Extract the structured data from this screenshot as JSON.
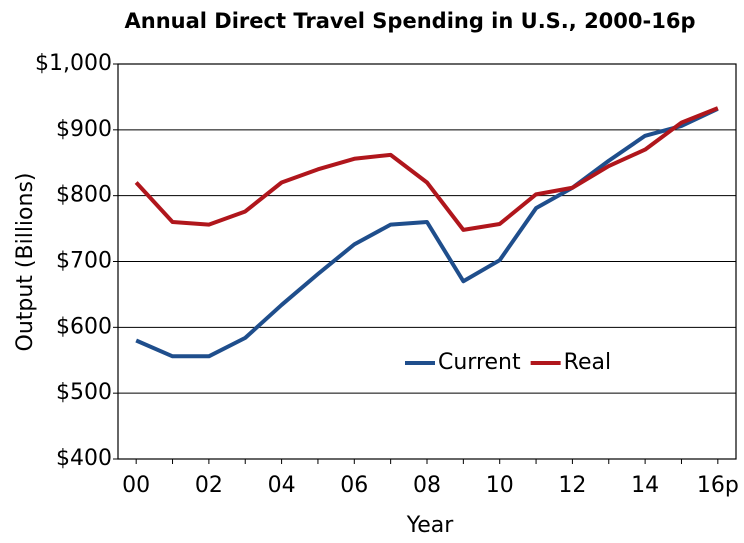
{
  "chart_data": {
    "type": "line",
    "title": "Annual Direct Travel Spending in U.S., 2000-16p",
    "x_label": "Year",
    "y_label": "Output (Billions)",
    "categories": [
      "00",
      null,
      "02",
      null,
      "04",
      null,
      "06",
      null,
      "08",
      null,
      "10",
      null,
      "12",
      null,
      "14",
      null,
      "16p"
    ],
    "series": [
      {
        "name": "Current",
        "color": "#1f4e8c",
        "values": [
          580,
          556,
          556,
          584,
          634,
          681,
          726,
          756,
          760,
          670,
          702,
          781,
          812,
          853,
          891,
          906,
          932
        ]
      },
      {
        "name": "Real",
        "color": "#b0161c",
        "values": [
          820,
          760,
          756,
          776,
          820,
          840,
          856,
          862,
          820,
          748,
          757,
          802,
          812,
          845,
          870,
          911,
          933
        ]
      }
    ],
    "ylim": [
      400,
      1000
    ],
    "yticks": [
      {
        "value": 400,
        "label": "$400"
      },
      {
        "value": 500,
        "label": "$500"
      },
      {
        "value": 600,
        "label": "$600"
      },
      {
        "value": 700,
        "label": "$700"
      },
      {
        "value": 800,
        "label": "$800"
      },
      {
        "value": 900,
        "label": "$900"
      },
      {
        "value": 1000,
        "label": "$1,000"
      }
    ],
    "grid": true,
    "legend": "center right"
  }
}
